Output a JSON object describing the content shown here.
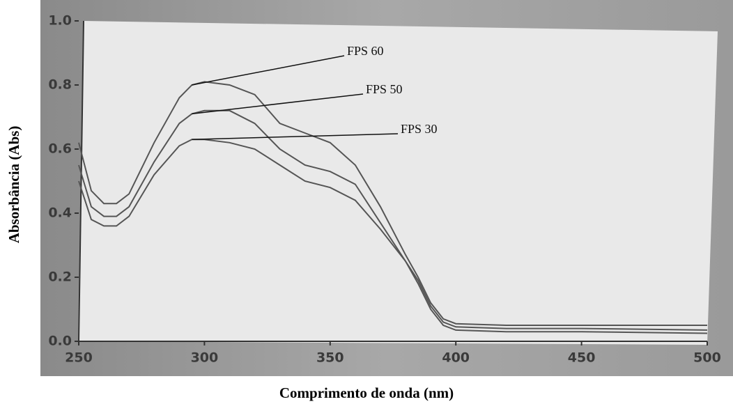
{
  "chart_data": {
    "type": "line",
    "xlabel": "Comprimento de onda (nm)",
    "ylabel": "Absorbância (Abs)",
    "x": [
      250,
      255,
      260,
      265,
      270,
      280,
      290,
      295,
      300,
      310,
      320,
      330,
      340,
      350,
      360,
      370,
      380,
      385,
      390,
      395,
      400,
      420,
      450,
      500
    ],
    "series": [
      {
        "name": "FPS 60",
        "color": "#555555",
        "values": [
          0.62,
          0.47,
          0.43,
          0.43,
          0.46,
          0.62,
          0.76,
          0.8,
          0.81,
          0.8,
          0.77,
          0.68,
          0.65,
          0.62,
          0.55,
          0.42,
          0.27,
          0.2,
          0.12,
          0.07,
          0.055,
          0.05,
          0.05,
          0.05
        ]
      },
      {
        "name": "FPS 50",
        "color": "#555555",
        "values": [
          0.55,
          0.42,
          0.39,
          0.39,
          0.42,
          0.56,
          0.68,
          0.71,
          0.72,
          0.72,
          0.68,
          0.6,
          0.55,
          0.53,
          0.49,
          0.37,
          0.25,
          0.19,
          0.11,
          0.06,
          0.045,
          0.04,
          0.04,
          0.035
        ]
      },
      {
        "name": "FPS 30",
        "color": "#555555",
        "values": [
          0.5,
          0.38,
          0.36,
          0.36,
          0.39,
          0.52,
          0.61,
          0.63,
          0.63,
          0.62,
          0.6,
          0.55,
          0.5,
          0.48,
          0.44,
          0.35,
          0.25,
          0.18,
          0.1,
          0.05,
          0.035,
          0.03,
          0.03,
          0.025
        ]
      }
    ],
    "xlim": [
      250,
      500
    ],
    "ylim": [
      0,
      1
    ],
    "xticks": [
      250,
      300,
      350,
      400,
      450,
      500
    ],
    "yticks": [
      {
        "value": 0,
        "label": "0.0"
      },
      {
        "value": 0.2,
        "label": "0.2"
      },
      {
        "value": 0.4,
        "label": "0.4"
      },
      {
        "value": 0.6,
        "label": "0.6"
      },
      {
        "value": 0.8,
        "label": "0.8"
      },
      {
        "value": 1,
        "label": "1.0"
      }
    ]
  }
}
